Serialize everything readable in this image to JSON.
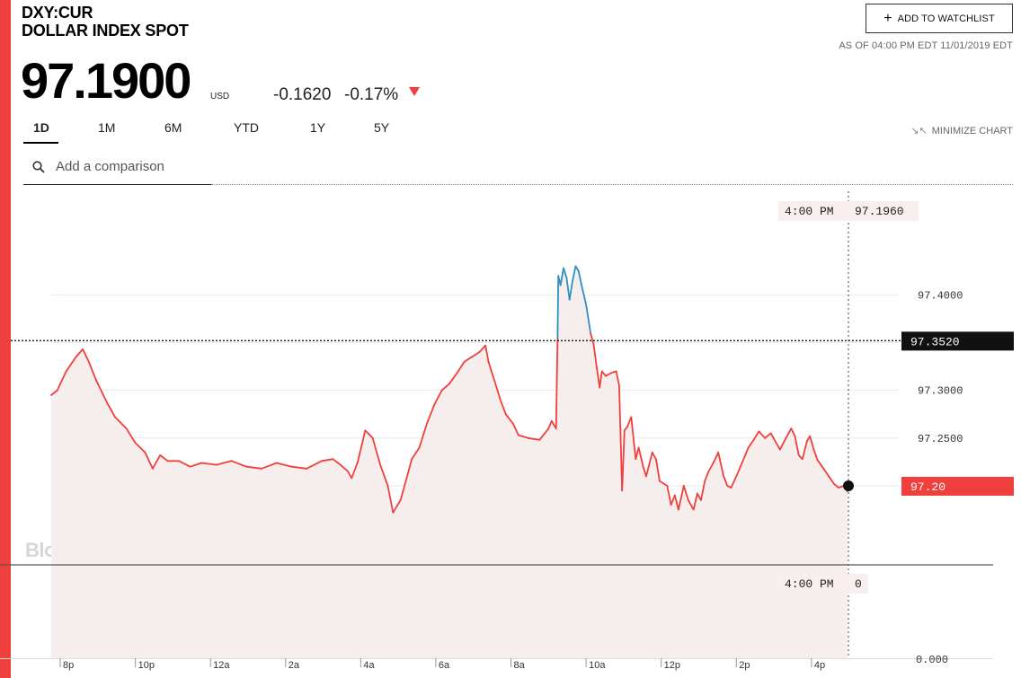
{
  "header": {
    "ticker": "DXY:CUR",
    "name": "DOLLAR INDEX SPOT",
    "watchlist_label": "ADD TO WATCHLIST",
    "as_of": "AS OF 04:00 PM EDT 11/01/2019 EDT"
  },
  "quote": {
    "price": "97.1900",
    "currency": "USD",
    "change": "-0.1620",
    "change_pct": "-0.17%"
  },
  "tabs": [
    {
      "label": "1D",
      "active": true
    },
    {
      "label": "1M",
      "active": false
    },
    {
      "label": "6M",
      "active": false
    },
    {
      "label": "YTD",
      "active": false
    },
    {
      "label": "1Y",
      "active": false
    },
    {
      "label": "5Y",
      "active": false
    }
  ],
  "minimize_label": "MINIMIZE CHART",
  "search": {
    "placeholder": "Add a comparison"
  },
  "colors": {
    "accent": "#f0403d",
    "line": "#f0403d",
    "highlight_line": "#2f8fc0",
    "fill": "#f6eded",
    "label_bg": "#f8eeee"
  },
  "chart_data": {
    "type": "line",
    "watermark": "BloombergMarkets",
    "x_tick_labels": [
      "8p",
      "10p",
      "12a",
      "2a",
      "4a",
      "6a",
      "8a",
      "10a",
      "12p",
      "2p",
      "4p"
    ],
    "y_tick_labels": [
      "97.4000",
      "97.3000",
      "97.2500"
    ],
    "volume_axis_label": "0.000",
    "crosshair": {
      "time_label": "4:00 PM",
      "value_label": "97.1960",
      "volume_time_label": "4:00 PM",
      "volume_value_label": "0"
    },
    "reference_line": {
      "value": 97.352,
      "label": "97.3520"
    },
    "last_price": {
      "value": 97.2,
      "label": "97.20"
    },
    "y_range": [
      97.152,
      97.437
    ],
    "series": [
      {
        "values": [
          [
            0,
            97.295
          ],
          [
            0.08,
            97.3
          ],
          [
            0.2,
            97.32
          ],
          [
            0.33,
            97.335
          ],
          [
            0.42,
            97.343
          ],
          [
            0.5,
            97.33
          ],
          [
            0.6,
            97.31
          ],
          [
            0.75,
            97.286
          ],
          [
            0.85,
            97.272
          ],
          [
            1.0,
            97.26
          ],
          [
            1.12,
            97.245
          ],
          [
            1.25,
            97.235
          ],
          [
            1.35,
            97.218
          ],
          [
            1.45,
            97.232
          ],
          [
            1.55,
            97.226
          ],
          [
            1.7,
            97.226
          ],
          [
            1.85,
            97.22
          ],
          [
            2.0,
            97.224
          ],
          [
            2.2,
            97.222
          ],
          [
            2.4,
            97.226
          ],
          [
            2.6,
            97.22
          ],
          [
            2.8,
            97.218
          ],
          [
            3.0,
            97.224
          ],
          [
            3.2,
            97.22
          ],
          [
            3.4,
            97.218
          ],
          [
            3.6,
            97.226
          ],
          [
            3.75,
            97.228
          ],
          [
            3.85,
            97.222
          ],
          [
            3.95,
            97.215
          ],
          [
            4.0,
            97.208
          ],
          [
            4.08,
            97.225
          ],
          [
            4.18,
            97.258
          ],
          [
            4.28,
            97.25
          ],
          [
            4.38,
            97.222
          ],
          [
            4.48,
            97.2
          ],
          [
            4.55,
            97.172
          ],
          [
            4.65,
            97.185
          ],
          [
            4.72,
            97.205
          ],
          [
            4.8,
            97.228
          ],
          [
            4.9,
            97.24
          ],
          [
            5.0,
            97.265
          ],
          [
            5.1,
            97.285
          ],
          [
            5.2,
            97.3
          ],
          [
            5.3,
            97.307
          ],
          [
            5.4,
            97.318
          ],
          [
            5.5,
            97.33
          ],
          [
            5.6,
            97.335
          ],
          [
            5.7,
            97.34
          ],
          [
            5.78,
            97.347
          ],
          [
            5.82,
            97.33
          ],
          [
            5.9,
            97.31
          ],
          [
            5.98,
            97.29
          ],
          [
            6.05,
            97.275
          ],
          [
            6.15,
            97.265
          ],
          [
            6.22,
            97.253
          ],
          [
            6.35,
            97.25
          ],
          [
            6.5,
            97.248
          ],
          [
            6.62,
            97.26
          ],
          [
            6.66,
            97.268
          ],
          [
            6.72,
            97.26
          ],
          [
            6.74,
            97.355
          ],
          [
            6.75,
            97.42
          ],
          [
            6.78,
            97.41
          ],
          [
            6.82,
            97.428
          ],
          [
            6.86,
            97.418
          ],
          [
            6.9,
            97.395
          ],
          [
            6.94,
            97.415
          ],
          [
            6.98,
            97.43
          ],
          [
            7.02,
            97.425
          ],
          [
            7.06,
            97.41
          ],
          [
            7.12,
            97.39
          ],
          [
            7.18,
            97.36
          ],
          [
            7.22,
            97.348
          ],
          [
            7.26,
            97.325
          ],
          [
            7.3,
            97.303
          ],
          [
            7.33,
            97.32
          ],
          [
            7.38,
            97.315
          ],
          [
            7.45,
            97.318
          ],
          [
            7.52,
            97.32
          ],
          [
            7.56,
            97.305
          ],
          [
            7.6,
            97.195
          ],
          [
            7.63,
            97.258
          ],
          [
            7.67,
            97.262
          ],
          [
            7.72,
            97.272
          ],
          [
            7.78,
            97.228
          ],
          [
            7.82,
            97.24
          ],
          [
            7.88,
            97.22
          ],
          [
            7.92,
            97.21
          ],
          [
            8.0,
            97.235
          ],
          [
            8.05,
            97.228
          ],
          [
            8.1,
            97.205
          ],
          [
            8.2,
            97.2
          ],
          [
            8.25,
            97.18
          ],
          [
            8.3,
            97.19
          ],
          [
            8.35,
            97.175
          ],
          [
            8.42,
            97.2
          ],
          [
            8.48,
            97.185
          ],
          [
            8.55,
            97.175
          ],
          [
            8.6,
            97.192
          ],
          [
            8.65,
            97.185
          ],
          [
            8.7,
            97.205
          ],
          [
            8.75,
            97.215
          ],
          [
            8.82,
            97.225
          ],
          [
            8.88,
            97.235
          ],
          [
            8.95,
            97.21
          ],
          [
            9.0,
            97.2
          ],
          [
            9.05,
            97.198
          ],
          [
            9.12,
            97.21
          ],
          [
            9.2,
            97.225
          ],
          [
            9.28,
            97.24
          ],
          [
            9.35,
            97.248
          ],
          [
            9.42,
            97.257
          ],
          [
            9.5,
            97.25
          ],
          [
            9.58,
            97.255
          ],
          [
            9.65,
            97.245
          ],
          [
            9.7,
            97.238
          ],
          [
            9.78,
            97.25
          ],
          [
            9.85,
            97.26
          ],
          [
            9.9,
            97.252
          ],
          [
            9.95,
            97.232
          ],
          [
            10.0,
            97.228
          ],
          [
            10.06,
            97.247
          ],
          [
            10.1,
            97.252
          ],
          [
            10.15,
            97.238
          ],
          [
            10.2,
            97.227
          ],
          [
            10.28,
            97.218
          ],
          [
            10.35,
            97.21
          ],
          [
            10.42,
            97.202
          ],
          [
            10.48,
            97.198
          ],
          [
            10.55,
            97.2
          ],
          [
            10.6,
            97.194
          ]
        ]
      }
    ]
  }
}
